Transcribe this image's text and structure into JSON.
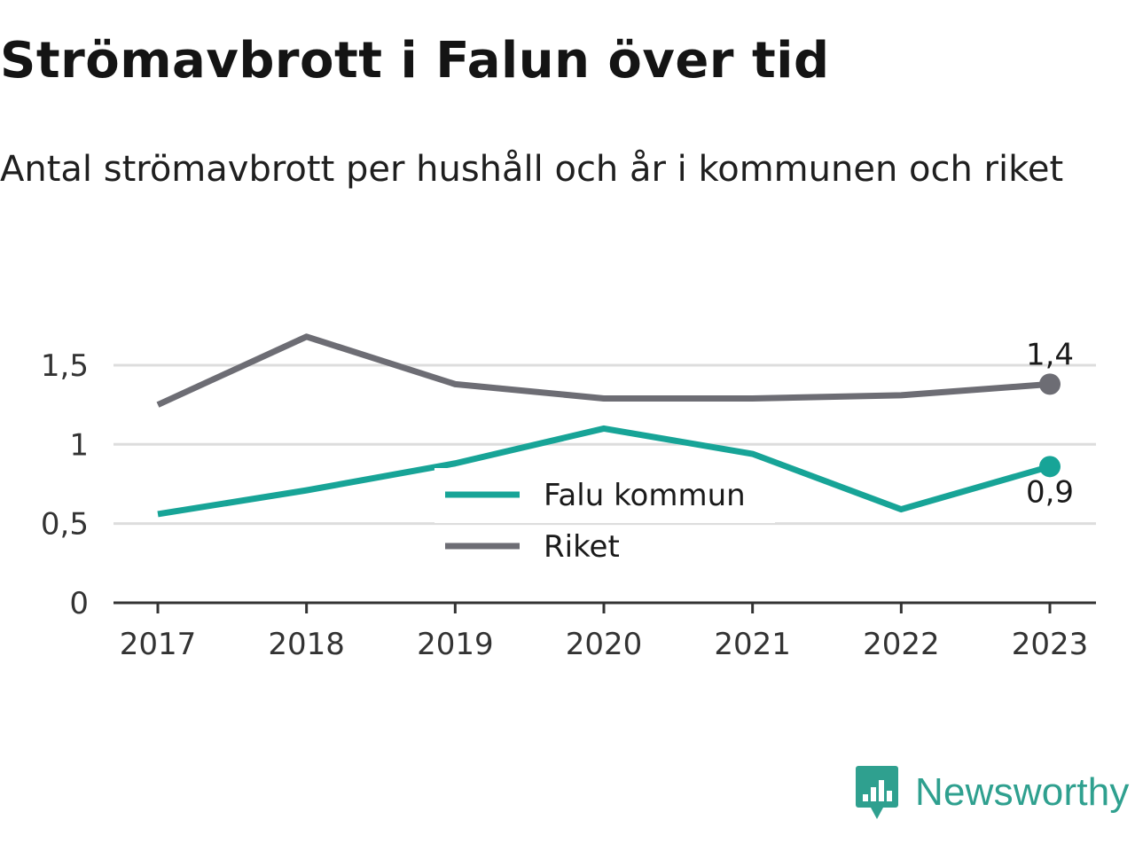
{
  "title": "Strömavbrott i Falun över tid",
  "subtitle": "Antal strömavbrott per hushåll och år i kommunen och riket",
  "colors": {
    "falu": "#17a497",
    "riket": "#6d6d74",
    "grid": "#dddddd",
    "axis": "#333333",
    "brand": "#2fa08f"
  },
  "brand": {
    "name": "Newsworthy",
    "icon": "bar-chart-speech-bubble-icon"
  },
  "chart_data": {
    "type": "line",
    "title": "Strömavbrott i Falun över tid",
    "subtitle": "Antal strömavbrott per hushåll och år i kommunen och riket",
    "xlabel": "",
    "ylabel": "",
    "x": [
      "2017",
      "2018",
      "2019",
      "2020",
      "2021",
      "2022",
      "2023"
    ],
    "ylim": [
      0,
      1.8
    ],
    "yticks": [
      0,
      0.5,
      1,
      1.5
    ],
    "ytick_labels": [
      "0",
      "0,5",
      "1",
      "1,5"
    ],
    "grid": true,
    "legend_position": "center",
    "series": [
      {
        "name": "Falu kommun",
        "color": "#17a497",
        "values": [
          0.56,
          0.71,
          0.88,
          1.1,
          0.94,
          0.59,
          0.86
        ],
        "end_label": "0,9"
      },
      {
        "name": "Riket",
        "color": "#6d6d74",
        "values": [
          1.25,
          1.68,
          1.38,
          1.29,
          1.29,
          1.31,
          1.38
        ],
        "end_label": "1,4"
      }
    ]
  }
}
